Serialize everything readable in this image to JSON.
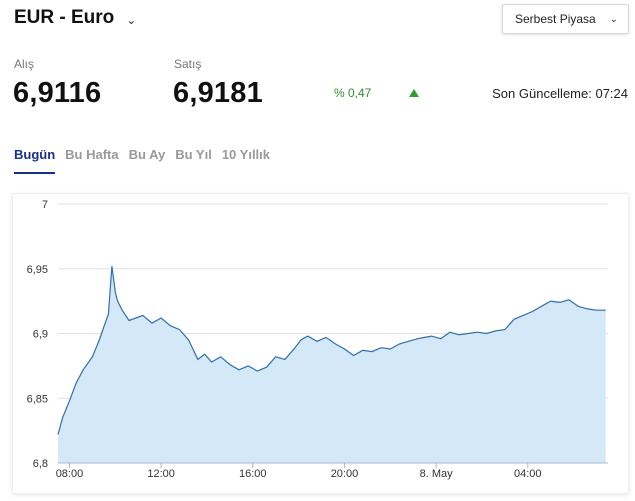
{
  "header": {
    "title": "EUR - Euro",
    "chevron_icon": "chevron-down-icon"
  },
  "market": {
    "selected": "Serbest Piyasa",
    "chevron_icon": "chevron-down-icon"
  },
  "quote": {
    "buy_label": "Alış",
    "buy_value": "6,9116",
    "sell_label": "Satış",
    "sell_value": "6,9181",
    "change_text": "% 0,47",
    "change_direction_icon": "triangle-up-icon",
    "change_color": "#2aa02a",
    "last_update": "Son Güncelleme: 07:24"
  },
  "tabs": [
    {
      "label": "Bugün",
      "active": true
    },
    {
      "label": "Bu Hafta",
      "active": false
    },
    {
      "label": "Bu Ay",
      "active": false
    },
    {
      "label": "Bu Yıl",
      "active": false
    },
    {
      "label": "10 Yıllık",
      "active": false
    }
  ],
  "chart_data": {
    "type": "area",
    "title": "",
    "xlabel": "",
    "ylabel": "",
    "ylim": [
      6.8,
      7.0
    ],
    "xlim": [
      "07:30",
      "07:30 (8. May)"
    ],
    "y_ticks": [
      "7",
      "6,95",
      "6,9",
      "6,85",
      "6,8"
    ],
    "y_tick_values": [
      7.0,
      6.95,
      6.9,
      6.85,
      6.8
    ],
    "x_ticks": [
      "08:00",
      "12:00",
      "16:00",
      "20:00",
      "8. May",
      "04:00"
    ],
    "x_tick_hours": [
      8,
      12,
      16,
      20,
      24,
      28
    ],
    "grid": true,
    "line_color": "#2f6fb0",
    "fill_color": "#d4e8f7",
    "x_hours": [
      7.5,
      7.7,
      8.0,
      8.3,
      8.6,
      9.0,
      9.3,
      9.5,
      9.7,
      9.85,
      10.0,
      10.1,
      10.3,
      10.6,
      10.9,
      11.2,
      11.6,
      12.0,
      12.4,
      12.8,
      13.2,
      13.6,
      13.9,
      14.2,
      14.6,
      15.0,
      15.4,
      15.8,
      16.2,
      16.6,
      17.0,
      17.4,
      17.8,
      18.1,
      18.4,
      18.8,
      19.2,
      19.6,
      20.0,
      20.4,
      20.8,
      21.2,
      21.6,
      22.0,
      22.4,
      22.8,
      23.2,
      23.5,
      23.8,
      24.2,
      24.6,
      25.0,
      25.4,
      25.8,
      26.2,
      26.6,
      27.0,
      27.4,
      27.8,
      28.2,
      28.6,
      29.0,
      29.4,
      29.8,
      30.2,
      30.6,
      31.0,
      31.4
    ],
    "values": [
      6.822,
      6.835,
      6.848,
      6.862,
      6.872,
      6.882,
      6.895,
      6.905,
      6.915,
      6.952,
      6.932,
      6.925,
      6.918,
      6.91,
      6.912,
      6.914,
      6.908,
      6.912,
      6.906,
      6.903,
      6.895,
      6.88,
      6.884,
      6.878,
      6.882,
      6.876,
      6.872,
      6.875,
      6.871,
      6.874,
      6.882,
      6.88,
      6.888,
      6.895,
      6.898,
      6.894,
      6.897,
      6.892,
      6.888,
      6.883,
      6.887,
      6.886,
      6.889,
      6.888,
      6.892,
      6.894,
      6.896,
      6.897,
      6.898,
      6.896,
      6.901,
      6.899,
      6.9,
      6.901,
      6.9,
      6.902,
      6.903,
      6.911,
      6.914,
      6.917,
      6.921,
      6.925,
      6.924,
      6.926,
      6.921,
      6.919,
      6.918,
      6.918
    ]
  }
}
